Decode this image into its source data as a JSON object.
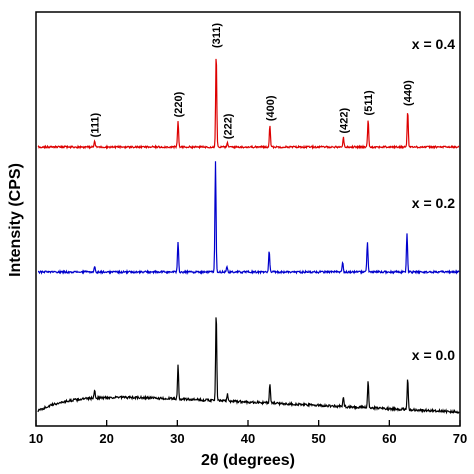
{
  "chart_data": {
    "type": "line",
    "xlabel": "2θ (degrees)",
    "ylabel": "Intensity (CPS)",
    "xlim": [
      10,
      70
    ],
    "x_ticks": [
      10,
      20,
      30,
      40,
      50,
      60,
      70
    ],
    "y_ticks_shown": false,
    "grid": false,
    "legend": "none",
    "series": [
      {
        "name": "x = 0.0",
        "color": "#000000",
        "peaks": [
          {
            "x": 18.3,
            "value": 9
          },
          {
            "x": 30.1,
            "value": 38
          },
          {
            "x": 35.5,
            "value": 100
          },
          {
            "x": 37.1,
            "value": 8
          },
          {
            "x": 43.1,
            "value": 22
          },
          {
            "x": 53.5,
            "value": 10
          },
          {
            "x": 57.0,
            "value": 30
          },
          {
            "x": 62.6,
            "value": 35
          }
        ]
      },
      {
        "name": "x = 0.2",
        "color": "#0000cc",
        "peaks": [
          {
            "x": 18.3,
            "value": 5
          },
          {
            "x": 30.1,
            "value": 28
          },
          {
            "x": 35.4,
            "value": 100
          },
          {
            "x": 37.0,
            "value": 5
          },
          {
            "x": 43.0,
            "value": 20
          },
          {
            "x": 53.4,
            "value": 8
          },
          {
            "x": 56.9,
            "value": 28
          },
          {
            "x": 62.5,
            "value": 35
          }
        ]
      },
      {
        "name": "x = 0.4",
        "color": "#dd0000",
        "peaks": [
          {
            "x": 18.3,
            "value": 6
          },
          {
            "x": 30.1,
            "value": 27
          },
          {
            "x": 35.5,
            "value": 100
          },
          {
            "x": 37.1,
            "value": 4
          },
          {
            "x": 43.1,
            "value": 23
          },
          {
            "x": 53.5,
            "value": 10
          },
          {
            "x": 57.0,
            "value": 29
          },
          {
            "x": 62.6,
            "value": 39
          }
        ]
      }
    ],
    "annotations": [
      {
        "label": "(111)",
        "x": 18.3
      },
      {
        "label": "(220)",
        "x": 30.1
      },
      {
        "label": "(311)",
        "x": 35.5
      },
      {
        "label": "(222)",
        "x": 37.1
      },
      {
        "label": "(400)",
        "x": 43.1
      },
      {
        "label": "(422)",
        "x": 53.5
      },
      {
        "label": "(511)",
        "x": 57.0
      },
      {
        "label": "(440)",
        "x": 62.6
      }
    ]
  }
}
